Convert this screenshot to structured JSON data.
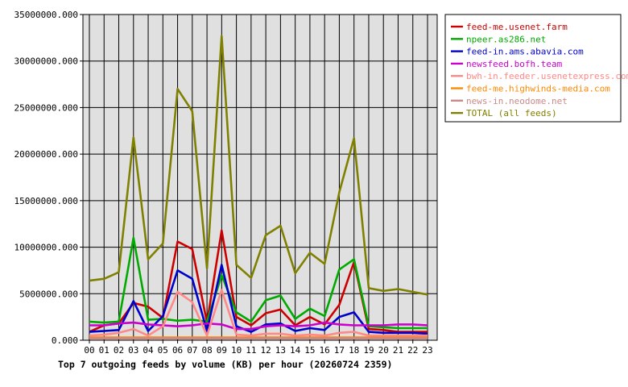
{
  "chart_data": {
    "type": "line",
    "title": "Top 7 outgoing feeds by volume (KB) per hour (20260724 2359)",
    "xlabel": "",
    "ylabel": "",
    "ylim": [
      0,
      35000000
    ],
    "yticks": [
      "0.000",
      "5000000.000",
      "10000000.000",
      "15000000.000",
      "20000000.000",
      "25000000.000",
      "30000000.000",
      "35000000.000"
    ],
    "ytick_values": [
      0,
      5000000,
      10000000,
      15000000,
      20000000,
      25000000,
      30000000,
      35000000
    ],
    "categories": [
      "00",
      "01",
      "02",
      "03",
      "04",
      "05",
      "06",
      "07",
      "08",
      "09",
      "10",
      "11",
      "12",
      "13",
      "14",
      "15",
      "16",
      "17",
      "18",
      "19",
      "20",
      "21",
      "22",
      "23"
    ],
    "grid": true,
    "legend_position": "top-right",
    "series": [
      {
        "name": "feed-me.usenet.farm",
        "color": "#cc0000",
        "values": [
          900000,
          1600000,
          1800000,
          4000000,
          3600000,
          2400000,
          10600000,
          9800000,
          1900000,
          11800000,
          2500000,
          1600000,
          2900000,
          3300000,
          1600000,
          2500000,
          1700000,
          3800000,
          8400000,
          1200000,
          1100000,
          900000,
          900000,
          900000
        ]
      },
      {
        "name": "npeer.as286.net",
        "color": "#00aa00",
        "values": [
          2000000,
          1900000,
          2000000,
          11000000,
          2200000,
          2300000,
          2100000,
          2200000,
          2000000,
          7000000,
          3000000,
          2000000,
          4300000,
          4800000,
          2300000,
          3400000,
          2600000,
          7600000,
          8700000,
          1500000,
          1400000,
          1300000,
          1300000,
          1300000
        ]
      },
      {
        "name": "feed-in.ams.abavia.com",
        "color": "#0000cc",
        "values": [
          900000,
          1000000,
          1100000,
          4200000,
          1000000,
          2600000,
          7500000,
          6600000,
          1000000,
          8100000,
          1500000,
          900000,
          1700000,
          1800000,
          1000000,
          1300000,
          1100000,
          2500000,
          3000000,
          900000,
          800000,
          800000,
          800000,
          700000
        ]
      },
      {
        "name": "newsfeed.bofh.team",
        "color": "#cc00cc",
        "values": [
          1600000,
          1600000,
          1800000,
          1900000,
          1700000,
          1600000,
          1500000,
          1600000,
          1800000,
          1700000,
          1200000,
          1200000,
          1500000,
          1600000,
          1500000,
          1600000,
          1900000,
          1700000,
          1600000,
          1600000,
          1600000,
          1700000,
          1700000,
          1600000
        ]
      },
      {
        "name": "bwh-in.feeder.usenetexpress.com",
        "color": "#ff8888",
        "values": [
          500000,
          600000,
          800000,
          1200000,
          500000,
          1500000,
          5200000,
          4100000,
          500000,
          5400000,
          600000,
          500000,
          700000,
          700000,
          500000,
          600000,
          500000,
          800000,
          900000,
          500000,
          500000,
          500000,
          500000,
          500000
        ]
      },
      {
        "name": "feed-me.highwinds-media.com",
        "color": "#ff8800",
        "values": [
          300000,
          300000,
          300000,
          300000,
          300000,
          300000,
          300000,
          300000,
          300000,
          300000,
          300000,
          300000,
          300000,
          300000,
          300000,
          300000,
          300000,
          300000,
          300000,
          300000,
          300000,
          300000,
          300000,
          300000
        ]
      },
      {
        "name": "news-in.neodome.net",
        "color": "#cc8888",
        "values": [
          200000,
          200000,
          200000,
          200000,
          200000,
          200000,
          200000,
          200000,
          200000,
          200000,
          200000,
          200000,
          200000,
          200000,
          200000,
          200000,
          200000,
          200000,
          200000,
          200000,
          200000,
          200000,
          200000,
          200000
        ]
      },
      {
        "name": "TOTAL (all feeds)",
        "color": "#808000",
        "values": [
          6400000,
          6600000,
          7300000,
          21800000,
          8700000,
          10400000,
          27000000,
          24600000,
          7700000,
          32700000,
          8100000,
          6700000,
          11300000,
          12300000,
          7200000,
          9400000,
          8200000,
          15900000,
          21700000,
          5600000,
          5300000,
          5500000,
          5200000,
          4900000
        ]
      }
    ]
  }
}
